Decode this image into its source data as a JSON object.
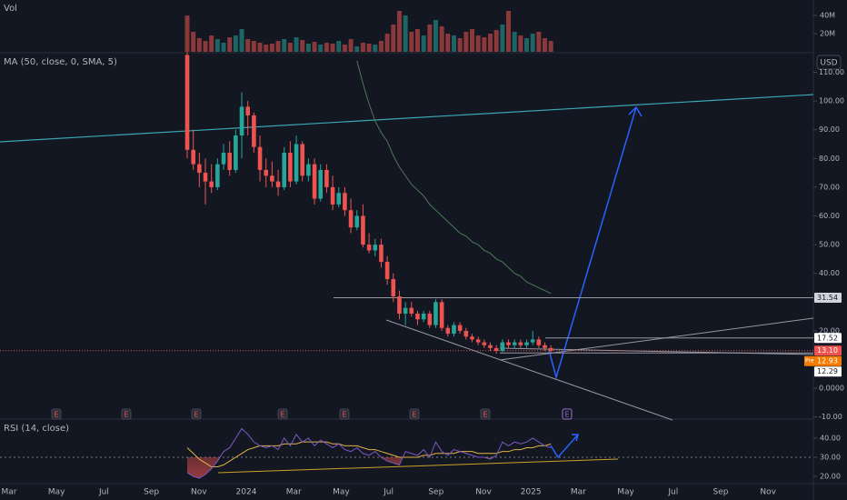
{
  "chart_data": {
    "type": "candlestick",
    "volume_label": "Vol",
    "ma_label": "MA (50, close, 0, SMA, 5)",
    "rsi_label": "RSI (14, close)",
    "currency": "USD",
    "pre_label": "Pre",
    "colors": {
      "up": "#26a69a",
      "down": "#ef5350",
      "ma": "#4c7a55",
      "rsi": "#7e57c2",
      "rsi_ma": "#e0b243"
    },
    "ylim": [
      -10.4,
      116.8
    ],
    "yticks": [
      {
        "value": 110,
        "label": "110.00"
      },
      {
        "value": 100,
        "label": "100.00"
      },
      {
        "value": 90,
        "label": "90.00"
      },
      {
        "value": 80,
        "label": "80.00"
      },
      {
        "value": 70,
        "label": "70.00"
      },
      {
        "value": 60,
        "label": "60.00"
      },
      {
        "value": 50,
        "label": "50.00"
      },
      {
        "value": 40,
        "label": "40.00"
      },
      {
        "value": 20,
        "label": "20.00"
      },
      {
        "value": 0,
        "label": "0.0000"
      },
      {
        "value": -10,
        "label": "-10.00"
      }
    ],
    "xticks": [
      "Mar",
      "May",
      "Jul",
      "Sep",
      "Nov",
      "2024",
      "Mar",
      "May",
      "Jul",
      "Sep",
      "Nov",
      "2025",
      "Mar",
      "May",
      "Jul",
      "Sep",
      "Nov"
    ],
    "ohlc": [
      [
        116,
        117,
        80,
        83
      ],
      [
        83,
        90,
        76,
        78
      ],
      [
        78,
        82,
        70,
        75
      ],
      [
        75,
        80,
        64,
        72
      ],
      [
        72,
        78,
        68,
        70
      ],
      [
        70,
        80,
        69,
        78
      ],
      [
        78,
        85,
        76,
        82
      ],
      [
        82,
        86,
        74,
        76
      ],
      [
        76,
        90,
        75,
        88
      ],
      [
        88,
        103,
        80,
        98
      ],
      [
        98,
        100,
        88,
        95
      ],
      [
        95,
        96,
        82,
        84
      ],
      [
        84,
        88,
        72,
        76
      ],
      [
        76,
        80,
        70,
        74
      ],
      [
        74,
        79,
        70,
        72
      ],
      [
        72,
        76,
        67,
        70
      ],
      [
        70,
        84,
        69,
        82
      ],
      [
        82,
        86,
        70,
        72
      ],
      [
        72,
        88,
        71,
        85
      ],
      [
        85,
        86,
        72,
        74
      ],
      [
        74,
        80,
        72,
        78
      ],
      [
        78,
        80,
        64,
        66
      ],
      [
        66,
        78,
        65,
        76
      ],
      [
        76,
        78,
        68,
        70
      ],
      [
        70,
        74,
        62,
        64
      ],
      [
        64,
        70,
        63,
        68
      ],
      [
        68,
        70,
        60,
        62
      ],
      [
        62,
        66,
        54,
        56
      ],
      [
        56,
        62,
        55,
        60
      ],
      [
        60,
        64,
        49,
        50
      ],
      [
        50,
        54,
        47,
        48
      ],
      [
        48,
        52,
        46,
        50
      ],
      [
        50,
        52,
        42,
        44
      ],
      [
        44,
        46,
        36,
        38
      ],
      [
        38,
        40,
        30,
        32
      ],
      [
        32,
        34,
        24,
        26
      ],
      [
        26,
        30,
        22,
        28
      ],
      [
        28,
        30,
        25,
        26
      ],
      [
        26,
        27,
        22,
        24
      ],
      [
        24,
        27,
        23,
        26
      ],
      [
        26,
        27,
        21,
        22
      ],
      [
        22,
        31,
        21,
        30
      ],
      [
        30,
        31,
        20,
        21
      ],
      [
        21,
        22,
        18,
        19
      ],
      [
        19,
        23,
        18,
        22
      ],
      [
        22,
        23,
        19,
        20
      ],
      [
        20,
        21,
        17,
        18
      ],
      [
        18,
        19,
        16,
        17
      ],
      [
        17,
        18,
        15,
        16
      ],
      [
        16,
        17,
        14,
        15
      ],
      [
        15,
        16,
        13,
        14
      ],
      [
        14,
        15,
        12,
        13
      ],
      [
        13,
        17,
        12.5,
        16
      ],
      [
        16,
        17,
        14,
        15
      ],
      [
        15,
        17,
        14,
        16
      ],
      [
        16,
        17,
        14,
        15
      ],
      [
        15,
        17,
        14,
        16
      ],
      [
        16,
        20,
        15,
        17
      ],
      [
        17,
        18,
        14,
        15
      ],
      [
        15,
        16,
        13,
        14
      ],
      [
        14,
        15,
        12.5,
        13.1
      ]
    ],
    "ma": [
      null,
      null,
      null,
      null,
      null,
      null,
      null,
      null,
      null,
      null,
      null,
      null,
      null,
      null,
      null,
      null,
      null,
      null,
      null,
      null,
      null,
      null,
      null,
      null,
      null,
      null,
      null,
      null,
      114,
      106,
      99,
      93,
      89,
      86,
      81,
      77,
      74,
      71,
      69,
      67,
      64,
      62,
      60,
      58,
      56,
      54,
      53,
      51,
      50,
      48,
      47,
      45,
      44,
      42,
      40,
      39,
      37,
      36,
      35,
      34,
      33
    ],
    "volume": [
      40,
      22,
      15,
      12,
      18,
      14,
      10,
      16,
      18,
      25,
      14,
      12,
      10,
      8,
      9,
      12,
      14,
      10,
      16,
      13,
      9,
      11,
      8,
      10,
      9,
      12,
      8,
      14,
      6,
      10,
      9,
      8,
      12,
      20,
      30,
      45,
      40,
      22,
      25,
      18,
      30,
      35,
      28,
      20,
      18,
      15,
      22,
      25,
      18,
      16,
      20,
      24,
      30,
      45,
      22,
      18,
      15,
      20,
      22,
      15,
      12
    ],
    "volume_ylim": [
      0,
      57
    ],
    "volume_yticks": [
      {
        "value": 40,
        "label": "40M"
      },
      {
        "value": 20,
        "label": "20M"
      }
    ],
    "rsi": [
      22,
      20,
      19,
      21,
      24,
      28,
      33,
      35,
      40,
      45,
      42,
      38,
      36,
      35,
      36,
      34,
      40,
      36,
      42,
      38,
      40,
      36,
      39,
      37,
      35,
      37,
      34,
      33,
      35,
      32,
      31,
      33,
      30,
      28,
      27,
      26,
      33,
      32,
      31,
      34,
      30,
      38,
      33,
      31,
      34,
      33,
      32,
      31,
      30,
      30,
      29,
      31,
      38,
      36,
      38,
      37,
      38,
      40,
      38,
      36,
      35
    ],
    "rsi_ma": [
      35,
      32,
      29,
      27,
      25,
      25,
      26,
      28,
      30,
      32,
      34,
      35,
      36,
      36,
      36,
      36,
      37,
      37,
      37,
      38,
      38,
      38,
      38,
      38,
      37,
      37,
      36,
      36,
      36,
      35,
      34,
      34,
      33,
      32,
      31,
      30,
      30,
      30,
      30,
      31,
      31,
      32,
      32,
      32,
      32,
      33,
      33,
      33,
      32,
      32,
      32,
      32,
      33,
      33,
      34,
      34,
      35,
      35,
      36,
      36,
      37
    ],
    "rsi_ylim": [
      16.2,
      49.5
    ],
    "rsi_yticks": [
      {
        "value": 40,
        "label": "40.00"
      },
      {
        "value": 30,
        "label": "30.00"
      },
      {
        "value": 20,
        "label": "20.00"
      }
    ],
    "levels": [
      31.54,
      17.52,
      {
        "value": 13.1,
        "label": "13.10"
      },
      12.93,
      12.29
    ],
    "level_colors": [
      "#d1d4dc",
      "#ffffff",
      "#ef5350",
      "#f57c00",
      "#ffffff"
    ],
    "earnings": [
      "E",
      "E",
      "E",
      "E",
      "E",
      "E",
      "E",
      "E"
    ]
  }
}
